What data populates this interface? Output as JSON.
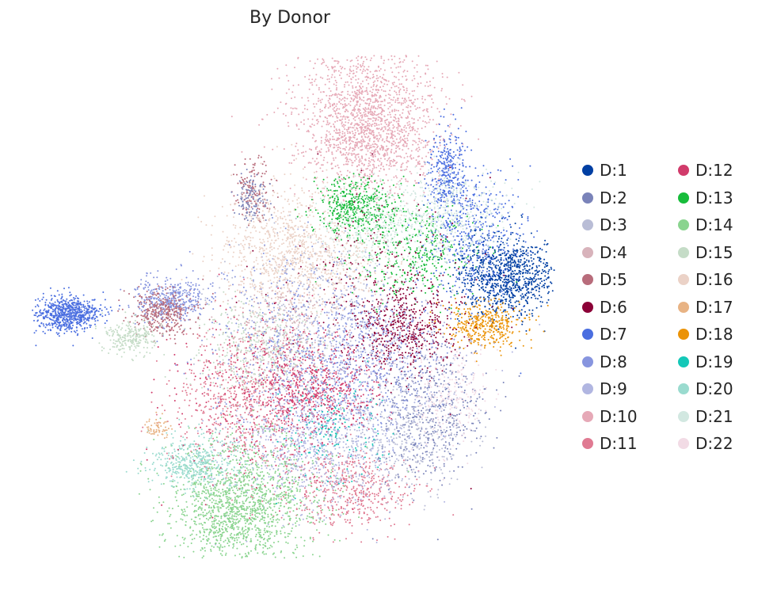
{
  "chart_data": {
    "type": "scatter",
    "title": "By Donor",
    "xlabel": "",
    "ylabel": "",
    "axes_visible": false,
    "grid": false,
    "legend_placement": "right",
    "legend_columns": 2,
    "series": [
      {
        "name": "D:1",
        "color": "#003fa3"
      },
      {
        "name": "D:2",
        "color": "#7a83b9"
      },
      {
        "name": "D:3",
        "color": "#b9bdd6"
      },
      {
        "name": "D:4",
        "color": "#d8b3bb"
      },
      {
        "name": "D:5",
        "color": "#b86c7b"
      },
      {
        "name": "D:6",
        "color": "#8b0037"
      },
      {
        "name": "D:7",
        "color": "#4a6ee0"
      },
      {
        "name": "D:8",
        "color": "#8795df"
      },
      {
        "name": "D:9",
        "color": "#b1b6e1"
      },
      {
        "name": "D:10",
        "color": "#e6a9b7"
      },
      {
        "name": "D:11",
        "color": "#e07a92"
      },
      {
        "name": "D:12",
        "color": "#d13b6b"
      },
      {
        "name": "D:13",
        "color": "#17bc3b"
      },
      {
        "name": "D:14",
        "color": "#8ad48f"
      },
      {
        "name": "D:15",
        "color": "#c5dcc7"
      },
      {
        "name": "D:16",
        "color": "#ebd2c7"
      },
      {
        "name": "D:17",
        "color": "#e8b384"
      },
      {
        "name": "D:18",
        "color": "#eb9307"
      },
      {
        "name": "D:19",
        "color": "#14c8b8"
      },
      {
        "name": "D:20",
        "color": "#9adbcf"
      },
      {
        "name": "D:21",
        "color": "#d2e8e1"
      },
      {
        "name": "D:22",
        "color": "#f2dbe5"
      }
    ]
  }
}
